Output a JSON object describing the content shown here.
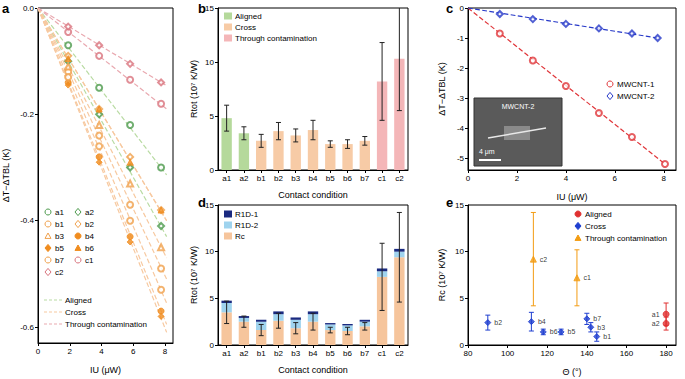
{
  "chart_data": [
    {
      "panel": "a",
      "type": "scatter",
      "x_label": "IU (μW)",
      "y_label": "ΔT−ΔTBL (K)",
      "grid": false,
      "xlim": [
        0,
        8.5
      ],
      "xticks": [
        0,
        2,
        4,
        6,
        8
      ],
      "ylim": [
        -0.63,
        0
      ],
      "yticks": [
        {
          "value": 0,
          "label": "0.0"
        },
        -0.2,
        -0.4,
        -0.6
      ],
      "x": [
        1.9,
        3.85,
        5.8,
        7.75
      ],
      "groups": [
        {
          "name": "Aligned",
          "color": "#b9dba3",
          "line_style": "dashed"
        },
        {
          "name": "Cross",
          "color": "#f7c9a0",
          "line_style": "dashed"
        },
        {
          "name": "Through contamination",
          "color": "#e9a9b0",
          "line_style": "dashed"
        }
      ],
      "series": [
        {
          "name": "a1",
          "group": "Aligned",
          "color": "#4c9a4c",
          "marker": "emptyCircle",
          "values": [
            -0.07,
            -0.15,
            -0.22,
            -0.3
          ],
          "fit": {
            "x": [
              0,
              8.1
            ],
            "values": [
              0,
              -0.314
            ]
          }
        },
        {
          "name": "a2",
          "group": "Aligned",
          "color": "#4c9a4c",
          "marker": "emptyDiamond",
          "values": [
            -0.1,
            -0.2,
            -0.3,
            -0.41
          ],
          "fit": {
            "x": [
              0,
              8.1
            ],
            "values": [
              0,
              -0.43
            ]
          }
        },
        {
          "name": "b1",
          "group": "Cross",
          "color": "#f0a04b",
          "marker": "emptyCircle",
          "values": [
            -0.12,
            -0.24,
            -0.37,
            -0.49
          ],
          "fit": {
            "x": [
              0,
              8.1
            ],
            "values": [
              0,
              -0.51
            ]
          }
        },
        {
          "name": "b2",
          "group": "Cross",
          "color": "#f0a04b",
          "marker": "emptyDiamond",
          "values": [
            -0.09,
            -0.19,
            -0.28,
            -0.38
          ],
          "fit": {
            "x": [
              0,
              8.1
            ],
            "values": [
              0,
              -0.4
            ]
          }
        },
        {
          "name": "b3",
          "group": "Cross",
          "color": "#f0a04b",
          "marker": "emptyTriangle",
          "values": [
            -0.11,
            -0.22,
            -0.33,
            -0.45
          ],
          "fit": {
            "x": [
              0,
              8.1
            ],
            "values": [
              0,
              -0.47
            ]
          }
        },
        {
          "name": "b4",
          "group": "Cross",
          "color": "#f08c1e",
          "marker": "circle",
          "values": [
            -0.14,
            -0.28,
            -0.43,
            -0.57
          ],
          "fit": {
            "x": [
              0,
              8.1
            ],
            "values": [
              0,
              -0.595
            ]
          }
        },
        {
          "name": "b5",
          "group": "Cross",
          "color": "#f08c1e",
          "marker": "diamond",
          "values": [
            -0.145,
            -0.29,
            -0.44,
            -0.58
          ],
          "fit": {
            "x": [
              0,
              8.1
            ],
            "values": [
              0,
              -0.61
            ]
          }
        },
        {
          "name": "b6",
          "group": "Cross",
          "color": "#f08c1e",
          "marker": "triangle",
          "values": [
            -0.095,
            -0.19,
            -0.29,
            -0.38
          ],
          "fit": {
            "x": [
              0,
              8.1
            ],
            "values": [
              0,
              -0.4
            ]
          }
        },
        {
          "name": "b7",
          "group": "Cross",
          "color": "#f0a04b",
          "marker": "emptyCircle",
          "values": [
            -0.13,
            -0.26,
            -0.4,
            -0.53
          ],
          "fit": {
            "x": [
              0,
              8.1
            ],
            "values": [
              0,
              -0.555
            ]
          }
        },
        {
          "name": "c1",
          "group": "Through contamination",
          "color": "#d9737d",
          "marker": "emptyCircle",
          "values": [
            -0.045,
            -0.09,
            -0.135,
            -0.18
          ],
          "fit": {
            "x": [
              0,
              8.1
            ],
            "values": [
              0,
              -0.19
            ]
          }
        },
        {
          "name": "c2",
          "group": "Through contamination",
          "color": "#d9737d",
          "marker": "emptyDiamond",
          "values": [
            -0.035,
            -0.07,
            -0.105,
            -0.14
          ],
          "fit": {
            "x": [
              0,
              8.1
            ],
            "values": [
              0,
              -0.146
            ]
          }
        }
      ]
    },
    {
      "panel": "b",
      "type": "bar",
      "x_label": "Contact condition",
      "y_label": "Rtot (10⁷ K/W)",
      "grid": false,
      "categories": [
        "a1",
        "a2",
        "b1",
        "b2",
        "b3",
        "b4",
        "b5",
        "b6",
        "b7",
        "c1",
        "c2"
      ],
      "ylim": [
        0,
        15
      ],
      "yticks": [
        0,
        5,
        10,
        15
      ],
      "series": [
        {
          "name": "Aligned",
          "color": "#b5d99b",
          "values": [
            4.8,
            3.4,
            null,
            null,
            null,
            null,
            null,
            null,
            null,
            null,
            null
          ],
          "errors": [
            1.2,
            0.6,
            null,
            null,
            null,
            null,
            null,
            null,
            null,
            null,
            null
          ]
        },
        {
          "name": "Cross",
          "color": "#f7cba6",
          "values": [
            null,
            null,
            2.7,
            3.6,
            3.2,
            3.7,
            2.4,
            2.4,
            2.7,
            null,
            null
          ],
          "errors": [
            null,
            null,
            0.6,
            0.8,
            0.6,
            0.9,
            0.3,
            0.4,
            0.4,
            null,
            null
          ]
        },
        {
          "name": "Through contamination",
          "color": "#f4b6b8",
          "values": [
            null,
            null,
            null,
            null,
            null,
            null,
            null,
            null,
            null,
            8.2,
            10.3
          ],
          "errors": [
            null,
            null,
            null,
            null,
            null,
            null,
            null,
            null,
            null,
            3.6,
            4.8
          ]
        }
      ]
    },
    {
      "panel": "c",
      "type": "scatter",
      "x_label": "IU (μW)",
      "y_label": "ΔT−ΔTBL (K)",
      "grid": false,
      "xlim": [
        0,
        8.5
      ],
      "xticks": [
        0,
        2,
        4,
        6,
        8
      ],
      "ylim": [
        -5.4,
        0
      ],
      "yticks": [
        -5,
        -4,
        -3,
        -2,
        -1,
        0
      ],
      "inset": {
        "title": "MWCNT-2",
        "scale_bar": "4 μm"
      },
      "series": [
        {
          "name": "MWCNT-1",
          "color": "#e0363a",
          "marker": "emptyCircle",
          "line_style": "dashed",
          "x": [
            1.3,
            2.65,
            4.0,
            5.35,
            6.7,
            8.05
          ],
          "values": [
            -0.85,
            -1.75,
            -2.6,
            -3.5,
            -4.3,
            -5.2
          ],
          "fit": {
            "x": [
              0,
              8.05
            ],
            "values": [
              0,
              -5.2
            ]
          }
        },
        {
          "name": "MWCNT-2",
          "color": "#2638c8",
          "marker": "emptyDiamond",
          "line_style": "dashed",
          "x": [
            1.3,
            2.65,
            4.0,
            5.35,
            6.7,
            7.75
          ],
          "values": [
            -0.2,
            -0.37,
            -0.53,
            -0.68,
            -0.85,
            -1.0
          ],
          "fit": {
            "x": [
              0,
              7.75
            ],
            "values": [
              0,
              -1.0
            ]
          }
        }
      ]
    },
    {
      "panel": "d",
      "type": "bar",
      "stacked": true,
      "x_label": "Contact condition",
      "y_label": "Rtot (10⁷ K/W)",
      "grid": false,
      "categories": [
        "a1",
        "a2",
        "b1",
        "b2",
        "b3",
        "b4",
        "b5",
        "b6",
        "b7",
        "c1",
        "c2"
      ],
      "ylim": [
        0,
        15
      ],
      "yticks": [
        0,
        5,
        10,
        15
      ],
      "series": [
        {
          "name": "R1D-1",
          "color": "#1a2a80",
          "values": [
            0.25,
            0.2,
            0.2,
            0.3,
            0.25,
            0.3,
            0.15,
            0.15,
            0.2,
            0.3,
            0.3
          ]
        },
        {
          "name": "R1D-2",
          "color": "#9fd3ee",
          "values": [
            1.0,
            0.4,
            0.9,
            0.7,
            0.9,
            0.8,
            0.6,
            0.6,
            0.5,
            0.6,
            0.6
          ]
        },
        {
          "name": "Rc",
          "color": "#f6c59c",
          "values": [
            3.5,
            2.5,
            1.6,
            2.6,
            1.8,
            2.5,
            1.6,
            1.5,
            2.0,
            7.3,
            9.4
          ],
          "errors": [
            1.2,
            0.6,
            0.6,
            0.8,
            0.6,
            0.9,
            0.3,
            0.4,
            0.4,
            3.6,
            4.8
          ]
        }
      ]
    },
    {
      "panel": "e",
      "type": "scatter",
      "x_label": "Θ (°)",
      "y_label": "Rc (10⁷ K/W)",
      "grid": false,
      "xlim": [
        80,
        185
      ],
      "xticks": [
        80,
        100,
        120,
        140,
        160,
        180
      ],
      "ylim": [
        0,
        15
      ],
      "yticks": [
        0,
        5,
        10,
        15
      ],
      "series": [
        {
          "name": "Aligned",
          "color": "#e03030",
          "marker": "circle",
          "x": [
            180,
            180
          ],
          "values": [
            3.3,
            2.3
          ],
          "errors": [
            1.2,
            0.7
          ],
          "labels": [
            "a1",
            "a2"
          ]
        },
        {
          "name": "Cross",
          "color": "#1f3fd0",
          "marker": "diamond",
          "x": [
            145,
            90,
            142,
            112,
            127,
            118,
            140
          ],
          "values": [
            0.9,
            2.4,
            1.9,
            2.5,
            1.4,
            1.4,
            2.8
          ],
          "errors": [
            0.5,
            0.8,
            0.5,
            1.0,
            0.3,
            0.3,
            0.6
          ],
          "labels": [
            "b1",
            "b2",
            "b3",
            "b4",
            "b5",
            "b6",
            "b7"
          ]
        },
        {
          "name": "Through contamination",
          "color": "#f39c12",
          "marker": "triangle",
          "x": [
            135,
            113
          ],
          "values": [
            7.2,
            9.2
          ],
          "errors": [
            3.0,
            5.0
          ],
          "labels": [
            "c1",
            "c2"
          ]
        }
      ]
    }
  ]
}
